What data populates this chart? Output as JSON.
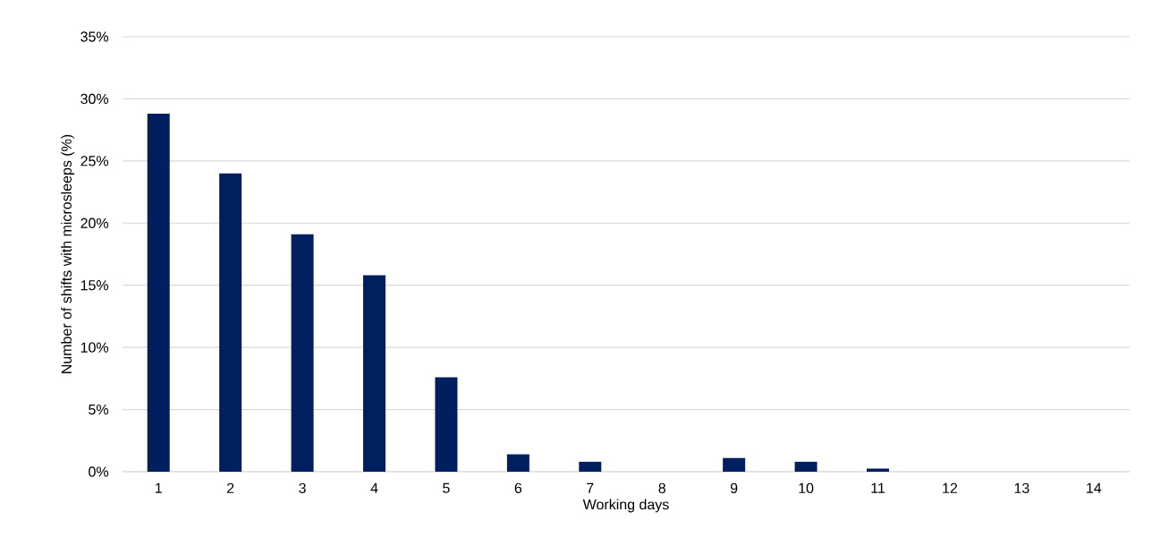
{
  "chart_data": {
    "type": "bar",
    "xlabel": "Working days",
    "ylabel": "Number of shifts with  microsleeps (%)",
    "categories": [
      "1",
      "2",
      "3",
      "4",
      "5",
      "6",
      "7",
      "8",
      "9",
      "10",
      "11",
      "12",
      "13",
      "14"
    ],
    "values": [
      28.8,
      24.0,
      19.1,
      15.8,
      7.6,
      1.4,
      0.8,
      0,
      1.1,
      0.8,
      0.25,
      0,
      0,
      0
    ],
    "color": "#001f5f",
    "ylim": [
      0,
      35
    ],
    "yticks": [
      {
        "value": 0,
        "label": "0%"
      },
      {
        "value": 5,
        "label": "5%"
      },
      {
        "value": 10,
        "label": "10%"
      },
      {
        "value": 15,
        "label": "15%"
      },
      {
        "value": 20,
        "label": "20%"
      },
      {
        "value": 25,
        "label": "25%"
      },
      {
        "value": 30,
        "label": "30%"
      },
      {
        "value": 35,
        "label": "35%"
      }
    ],
    "grid": "y"
  }
}
